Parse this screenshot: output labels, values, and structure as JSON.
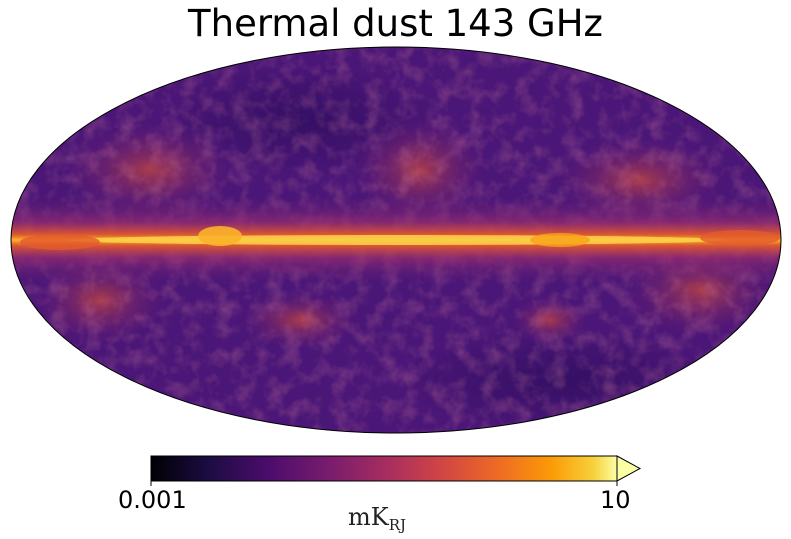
{
  "title": "Thermal dust 143 GHz",
  "colorbar": {
    "min_label": "0.001",
    "max_label": "10",
    "unit_main": "mK",
    "unit_sub": "RJ",
    "colormap": "inferno",
    "scale": "log",
    "extend": "max"
  },
  "projection": "mollweide",
  "colors": {
    "background_low": "#3b0f6f",
    "background_mid": "#6a1a7e",
    "band_mid": "#c8483d",
    "band_high": "#f7a21a",
    "band_peak": "#fcd24a"
  }
}
